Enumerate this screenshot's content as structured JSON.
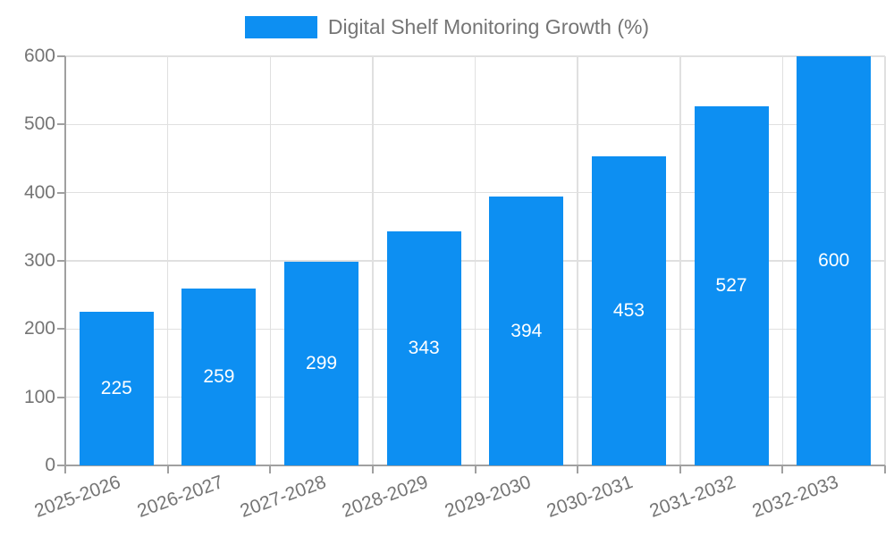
{
  "colors": {
    "background": "#ffffff",
    "bar": "#0d8ff2",
    "grid": "#e0e0e0",
    "axis": "#a0a0a0",
    "tick_text": "#757575",
    "bar_label": "#ffffff"
  },
  "legend": {
    "position": "top",
    "items": [
      {
        "label": "Digital Shelf Monitoring Growth (%)",
        "color": "#0d8ff2"
      }
    ]
  },
  "chart_data": {
    "type": "bar",
    "title": "Digital Shelf Monitoring Growth (%)",
    "categories": [
      "2025-2026",
      "2026-2027",
      "2027-2028",
      "2028-2029",
      "2029-2030",
      "2030-2031",
      "2031-2032",
      "2032-2033"
    ],
    "values": [
      225,
      259,
      299,
      343,
      394,
      453,
      527,
      600
    ],
    "xlabel": "",
    "ylabel": "",
    "ylim": [
      0,
      600
    ],
    "yticks": [
      0,
      100,
      200,
      300,
      400,
      500,
      600
    ],
    "grid": true,
    "legend_position": "top",
    "bar_label_position": "inside-center",
    "x_tick_rotation_deg": -20
  }
}
